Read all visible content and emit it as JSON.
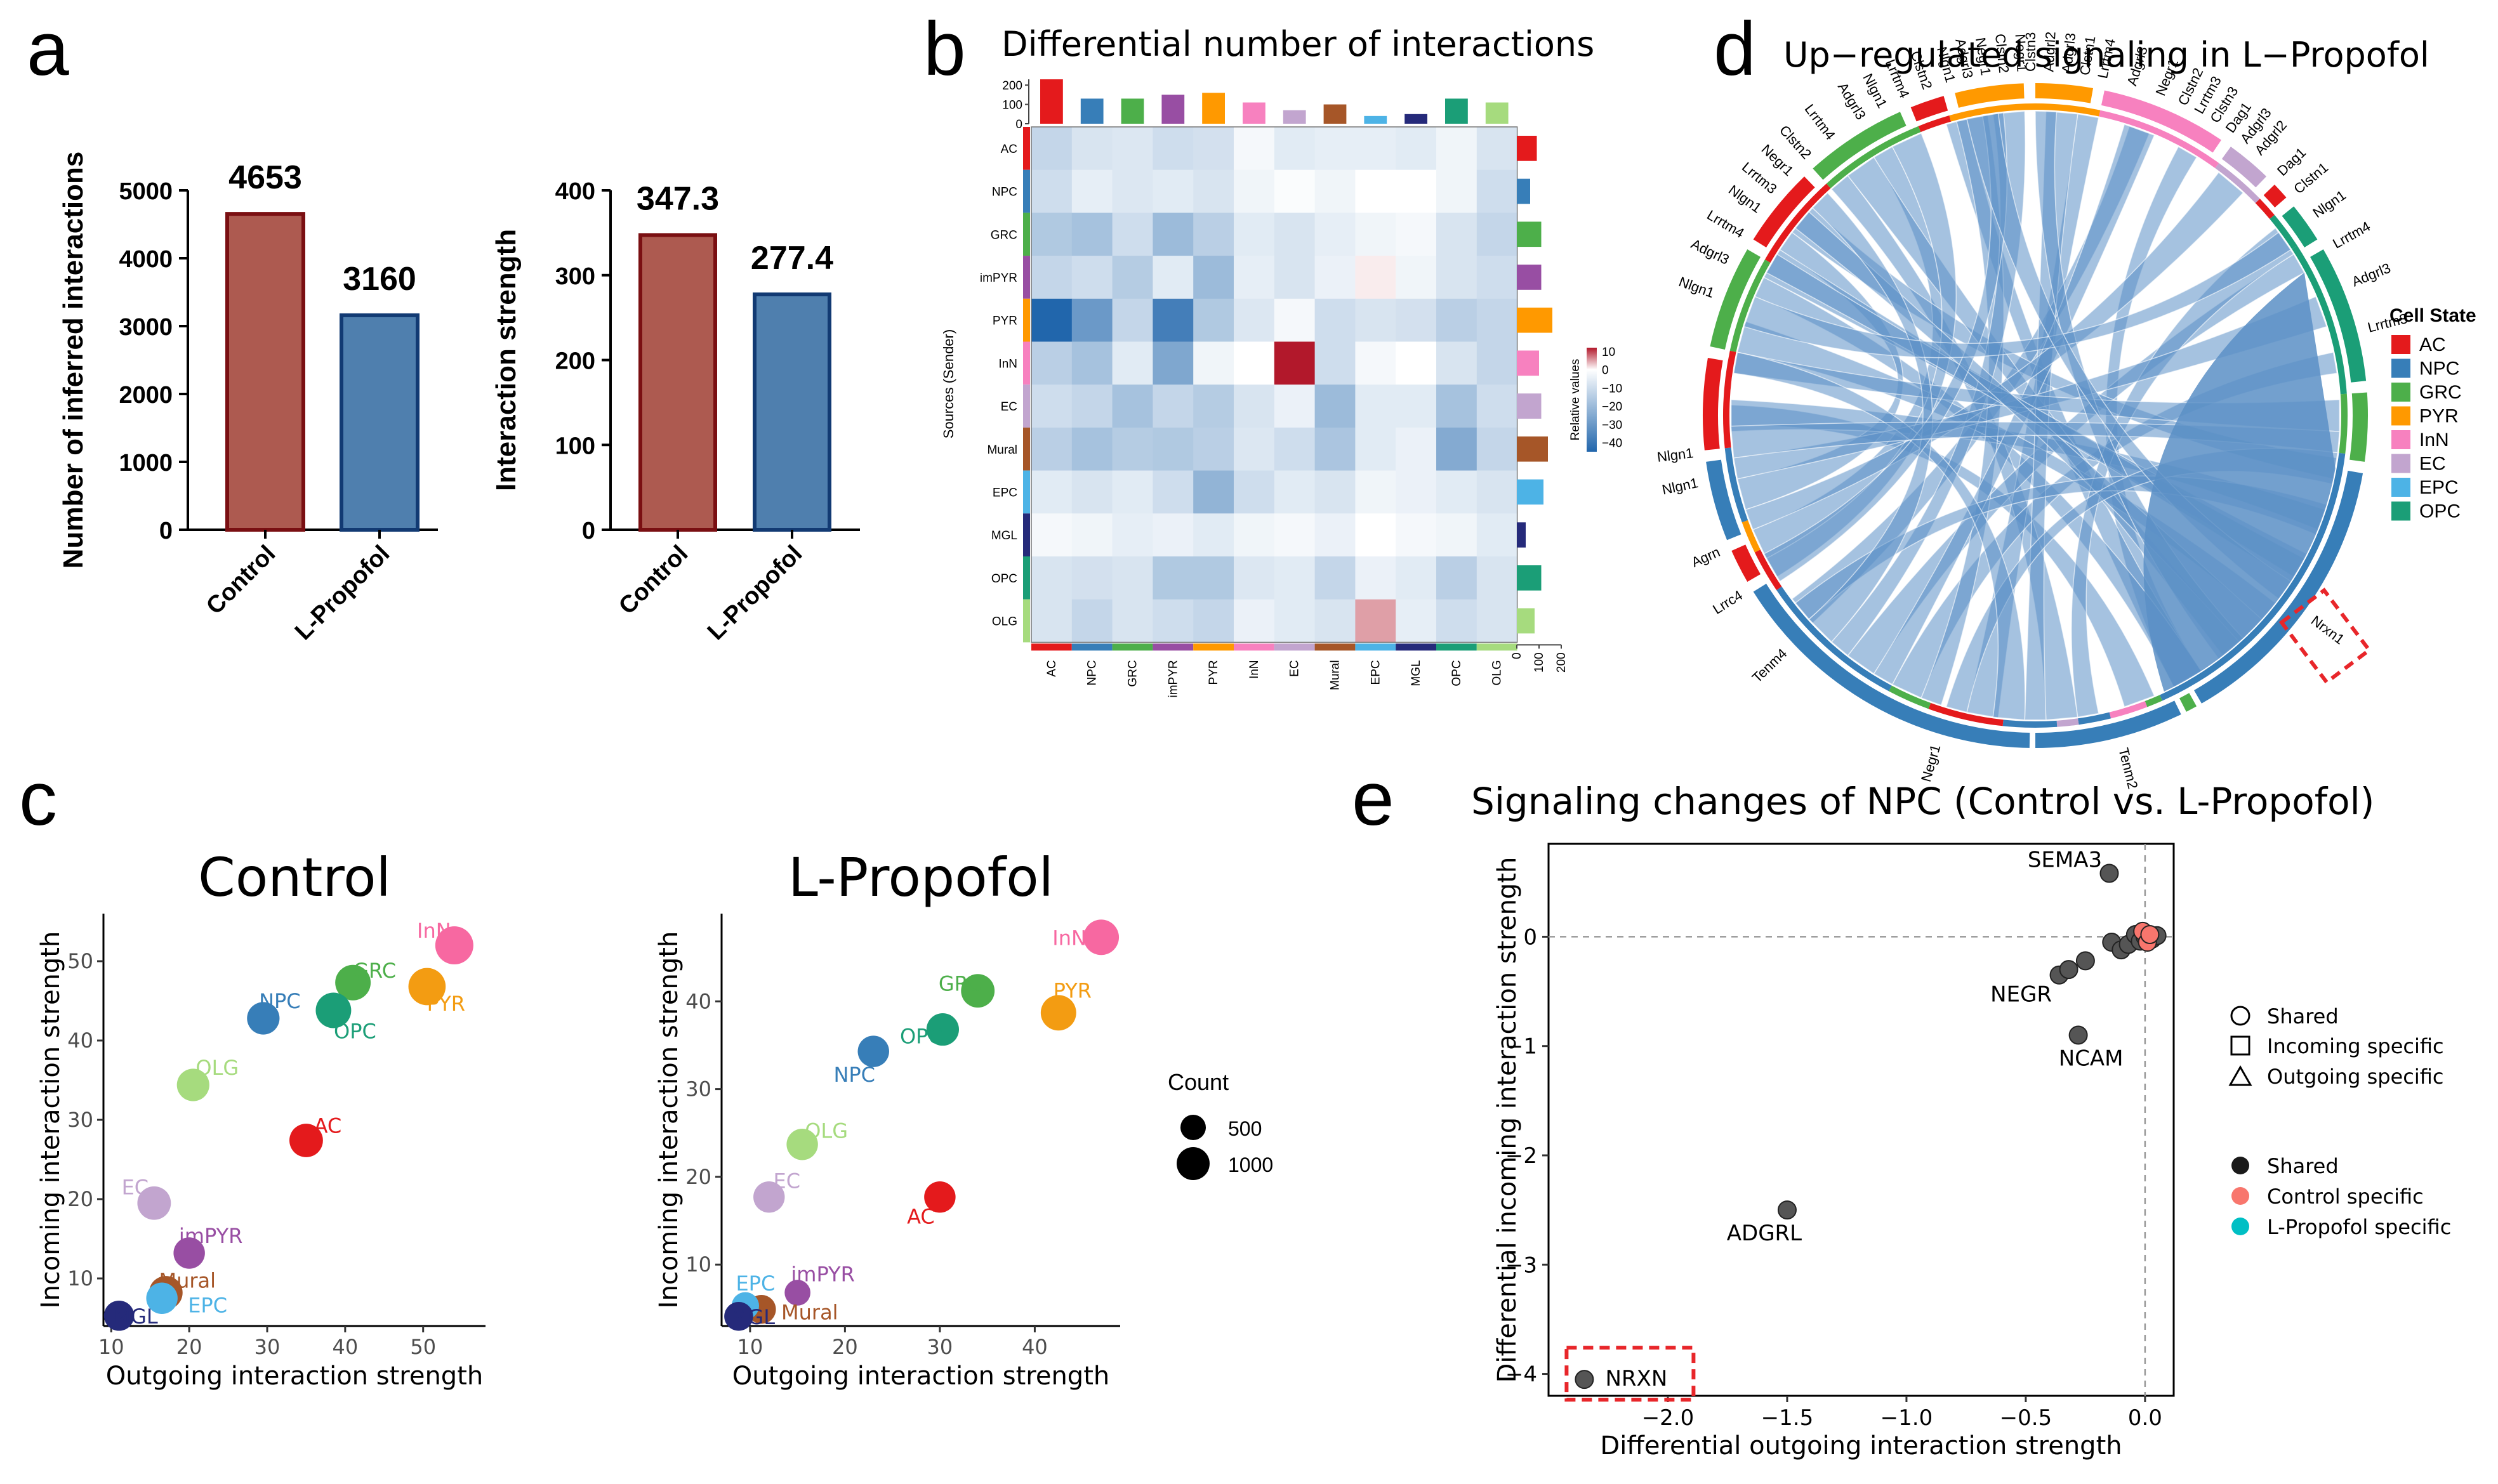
{
  "panel_labels": {
    "a": "a",
    "b": "b",
    "c": "c",
    "d": "d",
    "e": "e"
  },
  "chart_data": [
    {
      "id": "a1",
      "type": "bar",
      "categories": [
        "Control",
        "L-Propofol"
      ],
      "values": [
        4653,
        3160
      ],
      "value_labels": [
        "4653",
        "3160"
      ],
      "ylabel": "Number of inferred interactions",
      "ylim": [
        0,
        5000
      ],
      "yticks": [
        0,
        1000,
        2000,
        3000,
        4000,
        5000
      ],
      "colors": [
        "#AD5A50",
        "#4F7FAE"
      ],
      "edge_colors": [
        "#7A0F12",
        "#123A73"
      ]
    },
    {
      "id": "a2",
      "type": "bar",
      "categories": [
        "Control",
        "L-Propofol"
      ],
      "values": [
        347.3,
        277.4
      ],
      "value_labels": [
        "347.3",
        "277.4"
      ],
      "ylabel": "Interaction strength",
      "ylim": [
        0,
        400
      ],
      "yticks": [
        0,
        100,
        200,
        300,
        400
      ],
      "colors": [
        "#AD5A50",
        "#4F7FAE"
      ],
      "edge_colors": [
        "#7A0F12",
        "#123A73"
      ]
    },
    {
      "id": "b",
      "type": "heatmap",
      "title": "Differential number of interactions",
      "rows": [
        "AC",
        "NPC",
        "GRC",
        "imPYR",
        "PYR",
        "InN",
        "EC",
        "Mural",
        "EPC",
        "MGL",
        "OPC",
        "OLG"
      ],
      "cols": [
        "AC",
        "NPC",
        "GRC",
        "imPYR",
        "PYR",
        "InN",
        "EC",
        "Mural",
        "EPC",
        "MGL",
        "OPC",
        "OLG"
      ],
      "group_colors": [
        "#E41A1C",
        "#377EB8",
        "#4DAF4A",
        "#984EA3",
        "#FF9900",
        "#F781BF",
        "#C2A5CF",
        "#A65628",
        "#4DB3E6",
        "#252A7A",
        "#1B9E77",
        "#A6DB7E"
      ],
      "ylabel": "Sources (Sender)",
      "legend_title": "Relative values",
      "legend_ticks": [
        "10",
        "0",
        "−10",
        "−20",
        "−30",
        "−40"
      ],
      "legend_range": [
        -45,
        12
      ],
      "top_bar_values": [
        230,
        130,
        130,
        150,
        160,
        110,
        70,
        100,
        40,
        50,
        130,
        110
      ],
      "top_ticks": [
        "200",
        "100",
        "0"
      ],
      "right_bar_values": [
        90,
        60,
        110,
        110,
        160,
        100,
        110,
        140,
        120,
        40,
        110,
        80
      ],
      "right_ticks": [
        "0",
        "100",
        "200"
      ],
      "matrix": [
        [
          -12,
          -8,
          -7,
          -10,
          -9,
          -2,
          -6,
          -5,
          -5,
          -6,
          -3,
          -8
        ],
        [
          -10,
          -5,
          -7,
          -6,
          -8,
          -3,
          -1,
          -3,
          0,
          0,
          -3,
          -10
        ],
        [
          -16,
          -18,
          -10,
          -20,
          -14,
          -6,
          -8,
          -5,
          -3,
          -2,
          -8,
          -12
        ],
        [
          -12,
          -10,
          -15,
          -6,
          -20,
          -5,
          -8,
          -4,
          1,
          -3,
          -8,
          -10
        ],
        [
          -45,
          -30,
          -12,
          -38,
          -16,
          -7,
          -2,
          -10,
          -8,
          -9,
          -14,
          -12
        ],
        [
          -14,
          -18,
          -6,
          -26,
          -3,
          0,
          12,
          -10,
          -2,
          0,
          -8,
          -12
        ],
        [
          -10,
          -12,
          -18,
          -12,
          -15,
          -8,
          -4,
          -20,
          -6,
          -6,
          -18,
          -10
        ],
        [
          -14,
          -18,
          -15,
          -16,
          -14,
          -7,
          -10,
          -17,
          -6,
          -4,
          -25,
          -12
        ],
        [
          -6,
          -8,
          -6,
          -10,
          -22,
          -10,
          -6,
          -8,
          -3,
          -4,
          -6,
          -8
        ],
        [
          -2,
          -3,
          -5,
          -4,
          -6,
          -3,
          -2,
          -4,
          0,
          -2,
          -3,
          -6
        ],
        [
          -8,
          -9,
          -8,
          -16,
          -16,
          -7,
          -6,
          -12,
          -4,
          -6,
          -14,
          -8
        ],
        [
          -8,
          -12,
          -8,
          -10,
          -12,
          -4,
          -6,
          -8,
          5,
          -5,
          -10,
          -8
        ]
      ]
    },
    {
      "id": "c1",
      "type": "scatter",
      "title": "Control",
      "xlabel": "Outgoing interaction strength",
      "ylabel": "Incoming interaction strength",
      "xlim": [
        9,
        58
      ],
      "ylim": [
        4,
        56
      ],
      "xticks": [
        10,
        20,
        30,
        40,
        50
      ],
      "yticks": [
        10,
        20,
        30,
        40,
        50
      ],
      "points": [
        {
          "label": "InN",
          "x": 54,
          "y": 52,
          "count": 1400,
          "color": "#F768A1"
        },
        {
          "label": "PYR",
          "x": 50.5,
          "y": 46.8,
          "count": 1300,
          "color": "#F39C12"
        },
        {
          "label": "GRC",
          "x": 41,
          "y": 47.3,
          "count": 1100,
          "color": "#4DAF4A"
        },
        {
          "label": "OPC",
          "x": 38.5,
          "y": 43.8,
          "count": 1100,
          "color": "#1B9E77"
        },
        {
          "label": "NPC",
          "x": 29.5,
          "y": 42.8,
          "count": 800,
          "color": "#377EB8"
        },
        {
          "label": "OLG",
          "x": 20.5,
          "y": 34.4,
          "count": 800,
          "color": "#A6DB7E"
        },
        {
          "label": "AC",
          "x": 35,
          "y": 27.4,
          "count": 900,
          "color": "#E41A1C"
        },
        {
          "label": "EC",
          "x": 15.5,
          "y": 19.5,
          "count": 900,
          "color": "#C2A5CF"
        },
        {
          "label": "imPYR",
          "x": 20,
          "y": 13.2,
          "count": 700,
          "color": "#984EA3"
        },
        {
          "label": "Mural",
          "x": 17,
          "y": 8.2,
          "count": 900,
          "color": "#A65628"
        },
        {
          "label": "EPC",
          "x": 16.5,
          "y": 7.5,
          "count": 700,
          "color": "#4DB3E6"
        },
        {
          "label": "MGL",
          "x": 11,
          "y": 5.3,
          "count": 600,
          "color": "#252A7A"
        }
      ]
    },
    {
      "id": "c2",
      "type": "scatter",
      "title": "L-Propofol",
      "xlabel": "Outgoing interaction strength",
      "ylabel": "Incoming interaction strength",
      "xlim": [
        7,
        49
      ],
      "ylim": [
        3,
        50
      ],
      "xticks": [
        10,
        20,
        30,
        40
      ],
      "yticks": [
        10,
        20,
        30,
        40
      ],
      "points": [
        {
          "label": "InN",
          "x": 47,
          "y": 47.3,
          "count": 1100,
          "color": "#F768A1"
        },
        {
          "label": "PYR",
          "x": 42.5,
          "y": 38.7,
          "count": 1100,
          "color": "#F39C12"
        },
        {
          "label": "GRC",
          "x": 34,
          "y": 41.2,
          "count": 900,
          "color": "#4DAF4A"
        },
        {
          "label": "OPC",
          "x": 30.3,
          "y": 36.8,
          "count": 800,
          "color": "#1B9E77"
        },
        {
          "label": "NPC",
          "x": 23,
          "y": 34.3,
          "count": 700,
          "color": "#377EB8"
        },
        {
          "label": "OLG",
          "x": 15.5,
          "y": 23.7,
          "count": 700,
          "color": "#A6DB7E"
        },
        {
          "label": "AC",
          "x": 30,
          "y": 17.7,
          "count": 700,
          "color": "#E41A1C"
        },
        {
          "label": "EC",
          "x": 12,
          "y": 17.7,
          "count": 700,
          "color": "#C2A5CF"
        },
        {
          "label": "imPYR",
          "x": 15,
          "y": 6.8,
          "count": 300,
          "color": "#984EA3"
        },
        {
          "label": "Mural",
          "x": 11.2,
          "y": 4.9,
          "count": 500,
          "color": "#A65628"
        },
        {
          "label": "EPC",
          "x": 9.5,
          "y": 5.3,
          "count": 400,
          "color": "#4DB3E6"
        },
        {
          "label": "MGL",
          "x": 8.8,
          "y": 4.1,
          "count": 500,
          "color": "#252A7A"
        }
      ]
    },
    {
      "id": "d",
      "type": "chord",
      "title": "Up−regulated signaling in L−Propofol",
      "legend_title": "Cell State",
      "legend": [
        {
          "label": "AC",
          "color": "#E41A1C"
        },
        {
          "label": "NPC",
          "color": "#377EB8"
        },
        {
          "label": "GRC",
          "color": "#4DAF4A"
        },
        {
          "label": "PYR",
          "color": "#FF9900"
        },
        {
          "label": "InN",
          "color": "#F781BF"
        },
        {
          "label": "EC",
          "color": "#C2A5CF"
        },
        {
          "label": "EPC",
          "color": "#4DB3E6"
        },
        {
          "label": "OPC",
          "color": "#1B9E77"
        }
      ],
      "gene_labels": [
        "Nlgn1",
        "Adgrl3",
        "Lrrtm4",
        "Nlgn1",
        "Lrrtm3",
        "Negr1",
        "Clstn2",
        "Lrrtm4",
        "Adgrl3",
        "Nlgn1",
        "Lrrtm4",
        "Clstn2",
        "Nlgn1",
        "Adgrl3",
        "Negr1",
        "Clstn2",
        "Negr1",
        "Clstn3",
        "Adgrl2",
        "Adgrl3",
        "Clstn1",
        "Lrrtm4",
        "Adgrl3",
        "Negr1",
        "Clstn2",
        "Lrrtm3",
        "Clstn3",
        "Dag1",
        "Adgrl3",
        "Adgrl2",
        "Dag1",
        "Clstn1",
        "Nlgn1",
        "Lrrtm4",
        "Adgrl3",
        "Lrrtm3",
        "Nrxn1",
        "Tenm2",
        "Negr1",
        "Tenm4",
        "Lrrc4",
        "Agrn",
        "Nlgn1",
        "Nlgn1"
      ],
      "highlight": "Nrxn1"
    },
    {
      "id": "e",
      "type": "scatter",
      "title": "Signaling changes of NPC (Control vs. L-Propofol)",
      "xlabel": "Differential outgoing interaction strength",
      "ylabel": "Differential incoming interaction strength",
      "xlim": [
        -2.5,
        0.12
      ],
      "ylim": [
        -4.2,
        0.85
      ],
      "xticks": [
        -2.0,
        -1.5,
        -1.0,
        -0.5,
        0.0
      ],
      "xtick_labels": [
        "−2.0",
        "−1.5",
        "−1.0",
        "−0.5",
        "0.0"
      ],
      "yticks": [
        -4,
        -3,
        -2,
        -1,
        0
      ],
      "ytick_labels": [
        "−4",
        "−3",
        "−2",
        "−1",
        "0"
      ],
      "shape_legend": [
        "Shared",
        "Incoming specific",
        "Outgoing specific"
      ],
      "color_legend": [
        {
          "label": "Shared",
          "color": "#1A1A1A"
        },
        {
          "label": "Control specific",
          "color": "#F8766D"
        },
        {
          "label": "L-Propofol specific",
          "color": "#00BFC4"
        }
      ],
      "points": [
        {
          "label": "SEMA3",
          "x": -0.15,
          "y": 0.58,
          "kind": "shared"
        },
        {
          "label": "NEGR",
          "x": -0.36,
          "y": -0.35,
          "kind": "shared"
        },
        {
          "label": "NCAM",
          "x": -0.28,
          "y": -0.9,
          "kind": "shared"
        },
        {
          "label": "ADGRL",
          "x": -1.5,
          "y": -2.5,
          "kind": "shared"
        },
        {
          "label": "NRXN",
          "x": -2.35,
          "y": -4.05,
          "kind": "shared"
        },
        {
          "label": "",
          "x": -0.32,
          "y": -0.3,
          "kind": "shared"
        },
        {
          "label": "",
          "x": -0.25,
          "y": -0.22,
          "kind": "shared"
        },
        {
          "label": "",
          "x": -0.14,
          "y": -0.05,
          "kind": "shared"
        },
        {
          "label": "",
          "x": -0.1,
          "y": -0.12,
          "kind": "shared"
        },
        {
          "label": "",
          "x": -0.07,
          "y": -0.07,
          "kind": "shared"
        },
        {
          "label": "",
          "x": -0.04,
          "y": 0.02,
          "kind": "shared"
        },
        {
          "label": "",
          "x": -0.02,
          "y": -0.04,
          "kind": "shared"
        },
        {
          "label": "",
          "x": 0.0,
          "y": 0.0,
          "kind": "shared"
        },
        {
          "label": "",
          "x": 0.03,
          "y": -0.02,
          "kind": "shared"
        },
        {
          "label": "",
          "x": 0.05,
          "y": 0.01,
          "kind": "shared"
        },
        {
          "label": "",
          "x": -0.01,
          "y": 0.05,
          "kind": "control"
        },
        {
          "label": "",
          "x": 0.01,
          "y": -0.05,
          "kind": "control"
        },
        {
          "label": "",
          "x": 0.02,
          "y": 0.02,
          "kind": "control"
        }
      ]
    }
  ],
  "count_legend": {
    "title": "Count",
    "items": [
      "500",
      "1000"
    ]
  }
}
